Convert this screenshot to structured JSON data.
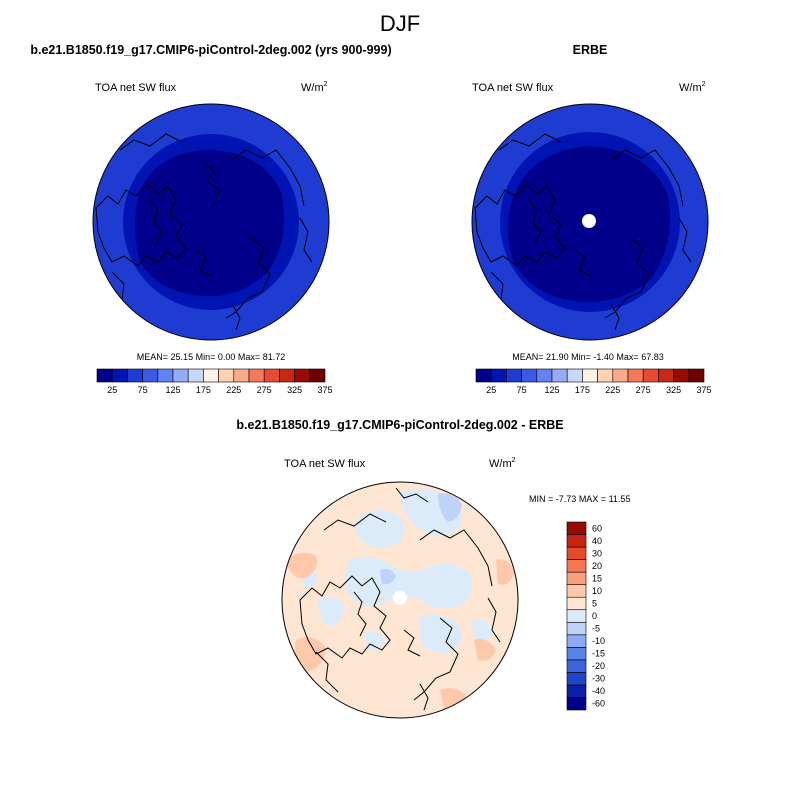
{
  "season": "DJF",
  "chart_data": [
    {
      "type": "polar-contour-map",
      "title": "b.e21.B1850.f19_g17.CMIP6-piControl-2deg.002 (yrs 900-999)",
      "variable": "TOA net SW flux",
      "units": "W/m",
      "units_exp": "2",
      "stats": {
        "mean_label": "MEAN=",
        "mean": "25.15",
        "min_label": "Min=",
        "min": "0.00",
        "max_label": "Max=",
        "max": "81.72"
      },
      "colorbar": {
        "colors": [
          "#00008B",
          "#0014B4",
          "#1E3CD2",
          "#3C5AE6",
          "#6482F0",
          "#96AAF5",
          "#C8D7FA",
          "#FFF0E6",
          "#FFD2B4",
          "#FAAA8C",
          "#F5785A",
          "#E64B32",
          "#C82814",
          "#960A00",
          "#6E0000"
        ],
        "tick_labels": [
          "25",
          "75",
          "125",
          "175",
          "225",
          "275",
          "325",
          "375"
        ]
      },
      "field_colors": {
        "outer_ring": "#1E3CD2",
        "inner_ring": "#0014B4",
        "core": "#00008B"
      }
    },
    {
      "type": "polar-contour-map",
      "title": "ERBE",
      "variable": "TOA net SW flux",
      "units": "W/m",
      "units_exp": "2",
      "stats": {
        "mean_label": "MEAN=",
        "mean": "21.90",
        "min_label": "Min=",
        "min": "-1.40",
        "max_label": "Max=",
        "max": "67.83"
      },
      "colorbar": {
        "colors": [
          "#00008B",
          "#0014B4",
          "#1E3CD2",
          "#3C5AE6",
          "#6482F0",
          "#96AAF5",
          "#C8D7FA",
          "#FFF0E6",
          "#FFD2B4",
          "#FAAA8C",
          "#F5785A",
          "#E64B32",
          "#C82814",
          "#960A00",
          "#6E0000"
        ],
        "tick_labels": [
          "25",
          "75",
          "125",
          "175",
          "225",
          "275",
          "325",
          "375"
        ]
      },
      "field_colors": {
        "outer_ring": "#1E3CD2",
        "inner_ring": "#0014B4",
        "core": "#00008B"
      },
      "missing_pole": true
    },
    {
      "type": "polar-contour-map",
      "title": "b.e21.B1850.f19_g17.CMIP6-piControl-2deg.002 - ERBE",
      "variable": "TOA net SW flux",
      "units": "W/m",
      "units_exp": "2",
      "stats": {
        "min_label": "MIN =",
        "min": "-7.73",
        "max_label": "MAX =",
        "max": "11.55"
      },
      "colorbar": {
        "orientation": "vertical",
        "colors": [
          "#00008B",
          "#0A1EAA",
          "#1E46C8",
          "#3C64E1",
          "#5A82EB",
          "#8CAAF5",
          "#BED2FA",
          "#DCEBFA",
          "#FFE6D2",
          "#FFC8AA",
          "#FAA07D",
          "#F57850",
          "#E64B28",
          "#C8230F",
          "#960A00"
        ],
        "tick_labels": [
          "-60",
          "-40",
          "-30",
          "-20",
          "-15",
          "-10",
          "-5",
          "0",
          "5",
          "10",
          "15",
          "20",
          "30",
          "40",
          "60"
        ]
      },
      "field_colors": {
        "background": "#FFE6D2",
        "negative": "#DCEBFA",
        "moderate_positive": "#FFC8AA",
        "negative_strong": "#BED2FA"
      },
      "missing_pole": true
    }
  ]
}
